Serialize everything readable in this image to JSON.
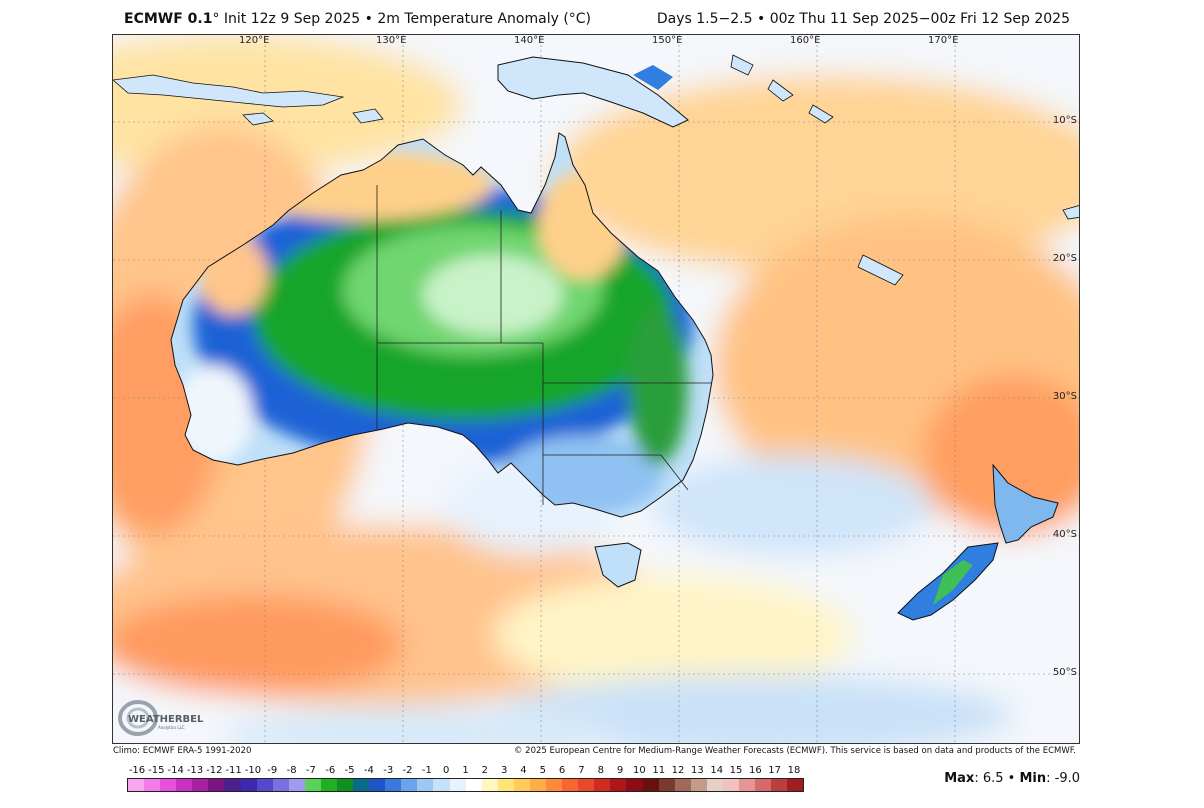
{
  "header": {
    "model": "ECMWF 0.1",
    "degree": "°",
    "init_text": "Init 12z 9 Sep 2025 • 2m Temperature Anomaly (°C)",
    "valid_text": "Days 1.5−2.5 • 00z Thu 11 Sep 2025−00z Fri 12 Sep 2025"
  },
  "map": {
    "lon_labels": [
      "120°E",
      "130°E",
      "140°E",
      "150°E",
      "160°E",
      "170°E"
    ],
    "lat_labels": [
      "10°S",
      "20°S",
      "30°S",
      "40°S",
      "50°S"
    ],
    "logo_text": "WEATHERBELL",
    "logo_subtext": "Analytics LLC"
  },
  "footer": {
    "climo": "Climo: ECMWF ERA-5 1991-2020",
    "copyright": "© 2025 European Centre for Medium-Range Weather Forecasts (ECMWF). This service is based on data and products of the ECMWF."
  },
  "colorbar": {
    "ticks": [
      "-16",
      "-15",
      "-14",
      "-13",
      "-12",
      "-11",
      "-10",
      "-9",
      "-8",
      "-7",
      "-6",
      "-5",
      "-4",
      "-3",
      "-2",
      "-1",
      "0",
      "1",
      "2",
      "3",
      "4",
      "5",
      "6",
      "7",
      "8",
      "9",
      "10",
      "11",
      "12",
      "13",
      "14",
      "15",
      "16",
      "17",
      "18"
    ],
    "colors": [
      "#f7a8f0",
      "#f27ce8",
      "#e84fdc",
      "#cc2fc4",
      "#a8209f",
      "#7e1484",
      "#4b1f8e",
      "#3a2ab0",
      "#5448cf",
      "#7a70e0",
      "#a19aee",
      "#5ad15a",
      "#22b022",
      "#0f8f1f",
      "#0a6a8a",
      "#1d55c8",
      "#3a7ae0",
      "#6aa4ee",
      "#9cc8f6",
      "#c6e2fb",
      "#e7f2fd",
      "#ffffff",
      "#fff7c2",
      "#ffe47a",
      "#ffcc5a",
      "#ffad48",
      "#ff8a3c",
      "#f76630",
      "#e84a28",
      "#d12a20",
      "#b0151a",
      "#8e0d14",
      "#6a1010",
      "#7a3a30",
      "#9e6a5a",
      "#c49a8a",
      "#e8cfc6",
      "#f2c0c0",
      "#e69595",
      "#d46a6a",
      "#bc3f3f",
      "#9e1e24"
    ],
    "max_label": "Max",
    "max_value": "6.5",
    "min_label": "Min",
    "min_value": "-9.0"
  }
}
